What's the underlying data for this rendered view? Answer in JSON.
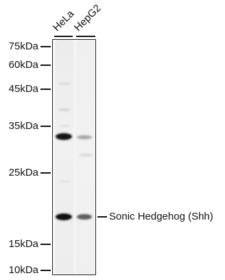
{
  "lanes": [
    "HeLa",
    "HepG2"
  ],
  "markers": [
    "75kDa",
    "60kDa",
    "45kDa",
    "35kDa",
    "25kDa",
    "15kDa",
    "10kDa"
  ],
  "annotation": "Sonic Hedgehog (Shh)"
}
